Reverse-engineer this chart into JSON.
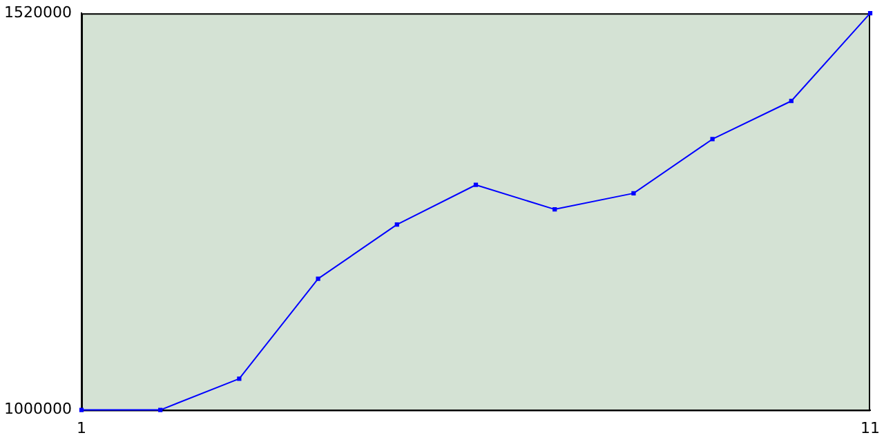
{
  "chart_data": {
    "type": "line",
    "x": [
      1,
      2,
      3,
      4,
      5,
      6,
      7,
      8,
      9,
      10,
      11
    ],
    "series": [
      {
        "color": "#0000ff",
        "values": [
          1000000,
          1000000,
          1041000,
          1172000,
          1243000,
          1295000,
          1263000,
          1284000,
          1355000,
          1405000,
          1520000
        ]
      }
    ],
    "xlim": [
      1,
      11
    ],
    "xticks": [
      1,
      11
    ],
    "ylim": [
      1000000,
      1520000
    ],
    "yticks": [
      1000000,
      1520000
    ],
    "grid": false,
    "legend": false,
    "marker": "square",
    "line_style": "solid"
  }
}
